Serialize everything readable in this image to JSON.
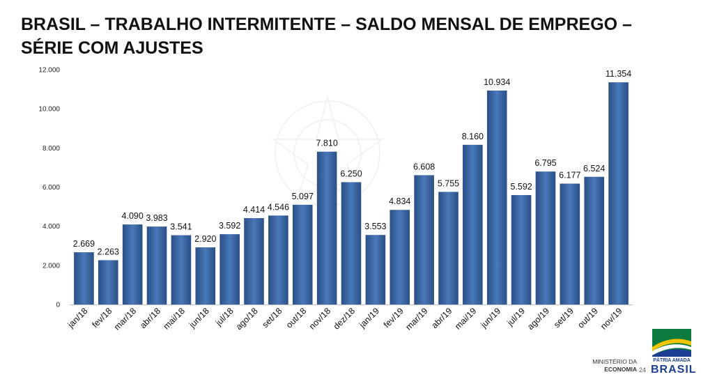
{
  "title": "BRASIL – TRABALHO INTERMITENTE – SALDO MENSAL DE EMPREGO – SÉRIE COM AJUSTES",
  "chart_data": {
    "type": "bar",
    "categories": [
      "jan/18",
      "fev/18",
      "mar/18",
      "abr/18",
      "mai/18",
      "jun/18",
      "jul/18",
      "ago/18",
      "set/18",
      "out/18",
      "nov/18",
      "dez/18",
      "jan/19",
      "fev/19",
      "mar/19",
      "abr/19",
      "mai/19",
      "jun/19",
      "jul/19",
      "ago/19",
      "set/19",
      "out/19",
      "nov/19"
    ],
    "values": [
      2669,
      2263,
      4090,
      3983,
      3541,
      2920,
      3592,
      4414,
      4546,
      5097,
      7810,
      6250,
      3553,
      4834,
      6608,
      5755,
      8160,
      10934,
      5592,
      6795,
      6177,
      6524,
      11354
    ],
    "value_labels": [
      "2.669",
      "2.263",
      "4.090",
      "3.983",
      "3.541",
      "2.920",
      "3.592",
      "4.414",
      "4.546",
      "5.097",
      "7.810",
      "6.250",
      "3.553",
      "4.834",
      "6.608",
      "5.755",
      "8.160",
      "10.934",
      "5.592",
      "6.795",
      "6.177",
      "6.524",
      "11.354"
    ],
    "y_ticks": [
      0,
      2000,
      4000,
      6000,
      8000,
      10000,
      12000
    ],
    "y_tick_labels": [
      "0",
      "2.000",
      "4.000",
      "6.000",
      "8.000",
      "10.000",
      "12.000"
    ],
    "ylim": [
      0,
      12000
    ],
    "grid": false,
    "legend": "none",
    "colors": {
      "bar_edge": "#2a4f86",
      "bar_center": "#4a78b8"
    }
  },
  "footer": {
    "ministry_line1": "MINISTÉRIO DA",
    "ministry_line2": "ECONOMIA",
    "page_number": "24",
    "logo_line1": "PÁTRIA AMADA",
    "logo_line2": "BRASIL"
  }
}
